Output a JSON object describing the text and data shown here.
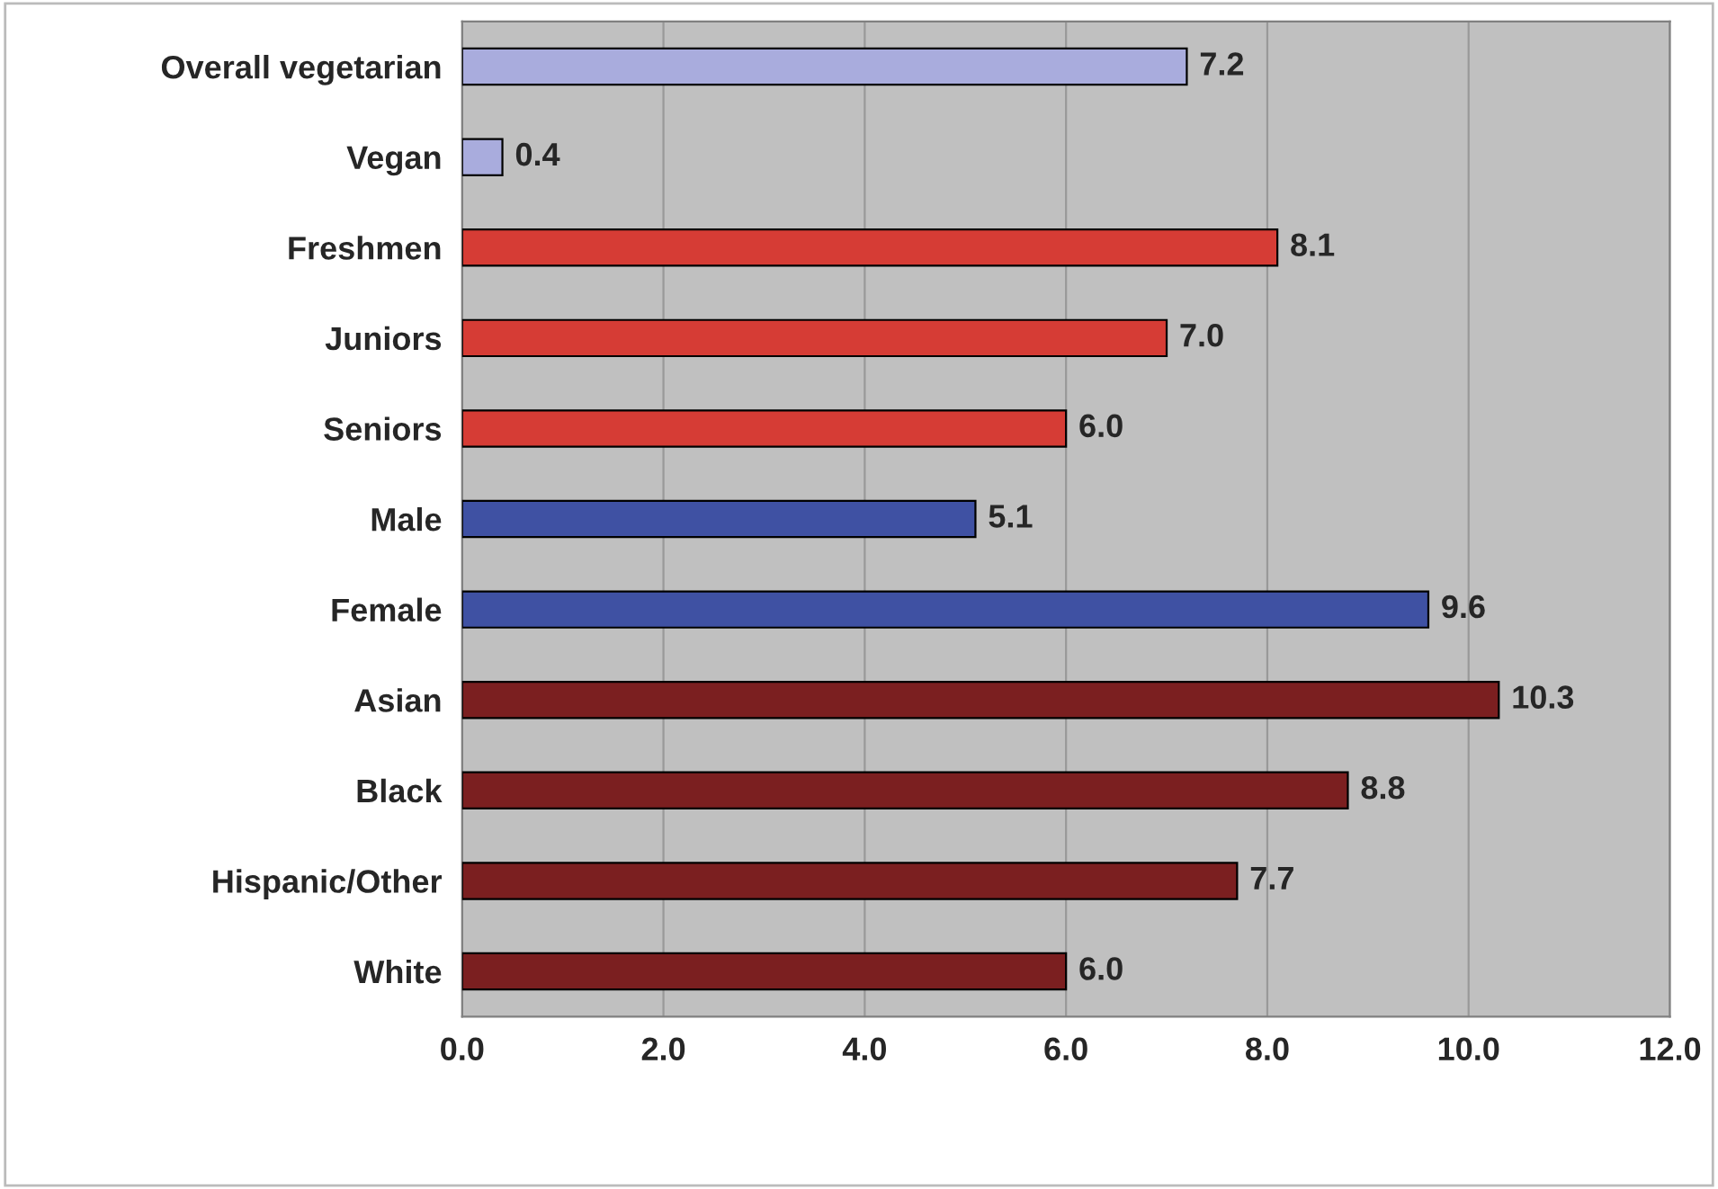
{
  "chart_data": {
    "type": "bar",
    "orientation": "horizontal",
    "categories": [
      "Overall vegetarian",
      "Vegan",
      "Freshmen",
      "Juniors",
      "Seniors",
      "Male",
      "Female",
      "Asian",
      "Black",
      "Hispanic/Other",
      "White"
    ],
    "values": [
      7.2,
      0.4,
      8.1,
      7.0,
      6.0,
      5.1,
      9.6,
      10.3,
      8.8,
      7.7,
      6.0
    ],
    "colors": [
      "#a9acdd",
      "#a9acdd",
      "#d63c35",
      "#d63c35",
      "#d63c35",
      "#3f51a3",
      "#3f51a3",
      "#7b1f20",
      "#7b1f20",
      "#7b1f20",
      "#7b1f20"
    ],
    "xlim": [
      0,
      12
    ],
    "xticks": [
      {
        "value": 0,
        "label": "0.0"
      },
      {
        "value": 2,
        "label": "2.0"
      },
      {
        "value": 4,
        "label": "4.0"
      },
      {
        "value": 6,
        "label": "6.0"
      },
      {
        "value": 8,
        "label": "8.0"
      },
      {
        "value": 10,
        "label": "10.0"
      },
      {
        "value": 12,
        "label": "12.0"
      }
    ],
    "value_labels": [
      "7.2",
      "0.4",
      "8.1",
      "7.0",
      "6.0",
      "5.1",
      "9.6",
      "10.3",
      "8.8",
      "7.7",
      "6.0"
    ],
    "grid": "x"
  }
}
